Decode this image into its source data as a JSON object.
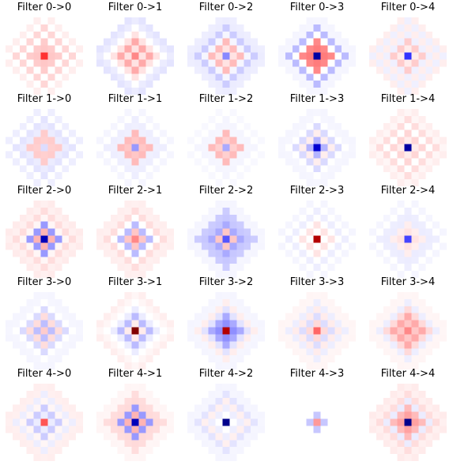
{
  "chart_data": {
    "type": "heatmap",
    "colormap": "seismic",
    "rows": 5,
    "cols": 5,
    "grid_size": 11,
    "axes": "off",
    "panels": [
      {
        "title": "Filter 0->0",
        "pattern": {
          "center": 0.6,
          "rings": [
            0.3,
            0.15,
            0.0,
            0.12,
            0.0,
            0.05
          ]
        }
      },
      {
        "title": "Filter 0->1",
        "pattern": {
          "center": 0.35,
          "rings": [
            0.15,
            0.25,
            0.15,
            0.0,
            -0.1,
            -0.08
          ]
        }
      },
      {
        "title": "Filter 0->2",
        "pattern": {
          "center": -0.35,
          "rings": [
            0.15,
            0.2,
            -0.05,
            -0.15,
            -0.1,
            -0.05
          ]
        }
      },
      {
        "title": "Filter 0->3",
        "pattern": {
          "center": -0.95,
          "rings": [
            0.7,
            0.35,
            0.0,
            -0.2,
            -0.05,
            -0.03
          ]
        }
      },
      {
        "title": "Filter 0->4",
        "pattern": {
          "center": -0.6,
          "rings": [
            0.1,
            0.15,
            -0.08,
            0.05,
            -0.08,
            0.05
          ]
        }
      },
      {
        "title": "Filter 1->0",
        "pattern": {
          "center": -0.1,
          "rings": [
            0.25,
            0.15,
            -0.1,
            -0.08,
            0.0,
            -0.05
          ]
        }
      },
      {
        "title": "Filter 1->1",
        "pattern": {
          "center": -0.3,
          "rings": [
            0.3,
            0.2,
            -0.08,
            -0.05,
            0.0,
            -0.03
          ]
        }
      },
      {
        "title": "Filter 1->2",
        "pattern": {
          "center": -0.25,
          "rings": [
            0.25,
            0.2,
            -0.05,
            -0.03,
            0.0,
            -0.02
          ]
        }
      },
      {
        "title": "Filter 1->3",
        "pattern": {
          "center": -0.85,
          "rings": [
            -0.4,
            0.05,
            -0.2,
            0.0,
            -0.05,
            -0.03
          ]
        }
      },
      {
        "title": "Filter 1->4",
        "pattern": {
          "center": -0.95,
          "rings": [
            0.1,
            0.12,
            0.0,
            0.1,
            0.05,
            0.05
          ]
        }
      },
      {
        "title": "Filter 2->0",
        "pattern": {
          "center": -0.9,
          "rings": [
            0.4,
            -0.3,
            0.05,
            0.1,
            0.08,
            0.06
          ]
        }
      },
      {
        "title": "Filter 2->1",
        "pattern": {
          "center": 0.35,
          "rings": [
            0.3,
            -0.2,
            0.0,
            0.1,
            0.08,
            0.05
          ]
        }
      },
      {
        "title": "Filter 2->2",
        "pattern": {
          "center": -0.5,
          "rings": [
            0.3,
            -0.25,
            -0.3,
            -0.15,
            -0.05,
            -0.03
          ]
        }
      },
      {
        "title": "Filter 2->3",
        "pattern": {
          "center": 0.9,
          "rings": [
            0.0,
            0.08,
            0.0,
            -0.05,
            0.0,
            -0.03
          ]
        }
      },
      {
        "title": "Filter 2->4",
        "pattern": {
          "center": -0.55,
          "rings": [
            0.15,
            0.05,
            -0.1,
            -0.05,
            0.0,
            -0.03
          ]
        }
      },
      {
        "title": "Filter 3->0",
        "pattern": {
          "center": 0.15,
          "rings": [
            -0.35,
            0.1,
            -0.2,
            0.0,
            -0.05,
            -0.03
          ]
        }
      },
      {
        "title": "Filter 3->1",
        "pattern": {
          "center": 1.0,
          "rings": [
            0.1,
            -0.2,
            -0.1,
            0.0,
            0.05,
            0.05
          ]
        }
      },
      {
        "title": "Filter 3->2",
        "pattern": {
          "center": 0.9,
          "rings": [
            -0.6,
            -0.25,
            -0.15,
            0.05,
            -0.05,
            -0.03
          ]
        }
      },
      {
        "title": "Filter 3->3",
        "pattern": {
          "center": 0.45,
          "rings": [
            0.2,
            -0.1,
            0.1,
            -0.05,
            0.05,
            0.03
          ]
        }
      },
      {
        "title": "Filter 3->4",
        "pattern": {
          "center": 0.35,
          "rings": [
            0.3,
            0.25,
            0.2,
            -0.05,
            0.05,
            0.03
          ]
        }
      },
      {
        "title": "Filter 4->0",
        "pattern": {
          "center": 0.5,
          "rings": [
            -0.1,
            -0.15,
            0.05,
            -0.05,
            0.08,
            0.05
          ]
        }
      },
      {
        "title": "Filter 4->1",
        "pattern": {
          "center": -0.9,
          "rings": [
            0.4,
            -0.3,
            0.2,
            0.1,
            0.05,
            0.03
          ]
        }
      },
      {
        "title": "Filter 4->2",
        "pattern": {
          "center": -1.0,
          "rings": [
            0.0,
            -0.05,
            0.08,
            -0.08,
            -0.05,
            -0.03
          ]
        }
      },
      {
        "title": "Filter 4->3",
        "pattern": {
          "center": 0.3,
          "rings": [
            -0.3,
            0.0,
            0.0,
            0.0,
            0.0,
            0.0
          ]
        }
      },
      {
        "title": "Filter 4->4",
        "pattern": {
          "center": -1.0,
          "rings": [
            0.5,
            0.2,
            -0.1,
            0.1,
            0.08,
            0.06
          ]
        }
      }
    ]
  }
}
